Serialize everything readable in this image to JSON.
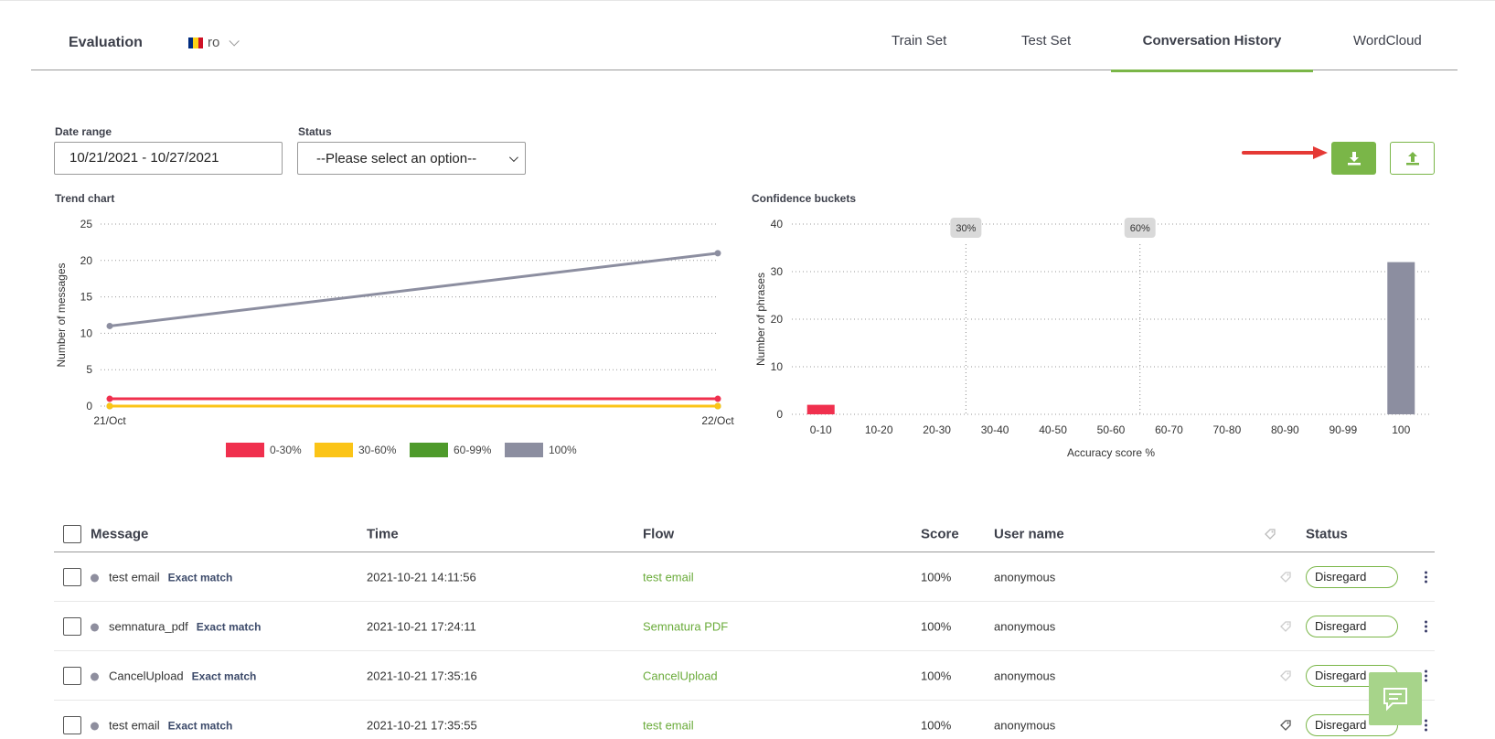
{
  "header": {
    "title": "Evaluation",
    "language": "ro",
    "tabs": [
      {
        "label": "Train Set",
        "active": false
      },
      {
        "label": "Test Set",
        "active": false
      },
      {
        "label": "Conversation History",
        "active": true
      },
      {
        "label": "WordCloud",
        "active": false
      }
    ]
  },
  "filters": {
    "date_range_label": "Date range",
    "date_range_value": "10/21/2021 - 10/27/2021",
    "status_label": "Status",
    "status_value": "--Please select an option--"
  },
  "actions": {
    "download_icon": "download-icon",
    "upload_icon": "upload-icon",
    "accent_color": "#7ab648",
    "arrow_color": "#e53935"
  },
  "trend_chart": {
    "title": "Trend chart",
    "chart_data": {
      "type": "line",
      "x": [
        "21/Oct",
        "22/Oct"
      ],
      "ylabel": "Number of messages",
      "ylim": [
        0,
        25
      ],
      "yticks": [
        0,
        5,
        10,
        15,
        20,
        25
      ],
      "grid": true,
      "legend_position": "bottom",
      "series": [
        {
          "name": "0-30%",
          "color": "#f0304e",
          "values": [
            1,
            1
          ]
        },
        {
          "name": "30-60%",
          "color": "#fbc417",
          "values": [
            0,
            0
          ]
        },
        {
          "name": "60-99%",
          "color": "#4e9a2b",
          "values": [
            0,
            0
          ]
        },
        {
          "name": "100%",
          "color": "#8c8ea0",
          "values": [
            11,
            21
          ]
        }
      ]
    }
  },
  "bucket_chart": {
    "title": "Confidence buckets",
    "chart_data": {
      "type": "bar",
      "categories": [
        "0-10",
        "10-20",
        "20-30",
        "30-40",
        "40-50",
        "50-60",
        "60-70",
        "70-80",
        "80-90",
        "90-99",
        "100"
      ],
      "values": [
        2,
        0,
        0,
        0,
        0,
        0,
        0,
        0,
        0,
        0,
        32
      ],
      "colors": [
        "#f0304e",
        "#8c8ea0",
        "#8c8ea0",
        "#8c8ea0",
        "#8c8ea0",
        "#8c8ea0",
        "#8c8ea0",
        "#8c8ea0",
        "#8c8ea0",
        "#8c8ea0",
        "#8c8ea0"
      ],
      "xlabel": "Accuracy score %",
      "ylabel": "Number of phrases",
      "ylim": [
        0,
        40
      ],
      "yticks": [
        0,
        10,
        20,
        30,
        40
      ],
      "grid": true,
      "thresholds": [
        {
          "label": "30%",
          "between": [
            "20-30",
            "30-40"
          ]
        },
        {
          "label": "60%",
          "between": [
            "50-60",
            "60-70"
          ]
        }
      ]
    }
  },
  "table": {
    "columns": {
      "message": "Message",
      "time": "Time",
      "flow": "Flow",
      "score": "Score",
      "user": "User name",
      "status": "Status"
    },
    "rows": [
      {
        "message": "test email",
        "match": "Exact match",
        "time": "2021-10-21 14:11:56",
        "flow": "test email",
        "score": "100%",
        "user": "anonymous",
        "status": "Disregard"
      },
      {
        "message": "semnatura_pdf",
        "match": "Exact match",
        "time": "2021-10-21 17:24:11",
        "flow": "Semnatura PDF",
        "score": "100%",
        "user": "anonymous",
        "status": "Disregard"
      },
      {
        "message": "CancelUpload",
        "match": "Exact match",
        "time": "2021-10-21 17:35:16",
        "flow": "CancelUpload",
        "score": "100%",
        "user": "anonymous",
        "status": "Disregard"
      },
      {
        "message": "test email",
        "match": "Exact match",
        "time": "2021-10-21 17:35:55",
        "flow": "test email",
        "score": "100%",
        "user": "anonymous",
        "status": "Disregard"
      }
    ]
  },
  "chat_icon": "chat-icon"
}
